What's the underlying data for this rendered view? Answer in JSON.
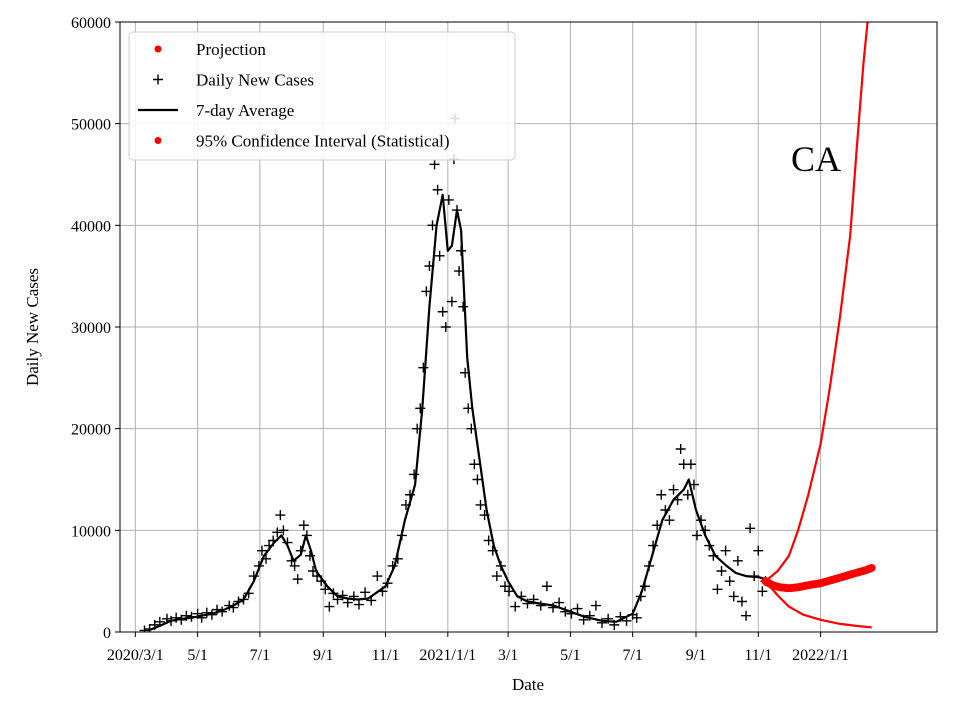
{
  "chart_data": {
    "type": "line",
    "region_label": "CA",
    "xlabel": "Date",
    "ylabel": "Daily New Cases",
    "xlim": [
      "2020-02-15",
      "2022-04-25"
    ],
    "ylim": [
      0,
      60000
    ],
    "grid": true,
    "legend_position": "top-left",
    "x_ticks": [
      {
        "date": "2020-03-01",
        "label": "2020/3/1"
      },
      {
        "date": "2020-05-01",
        "label": "5/1"
      },
      {
        "date": "2020-07-01",
        "label": "7/1"
      },
      {
        "date": "2020-09-01",
        "label": "9/1"
      },
      {
        "date": "2020-11-01",
        "label": "11/1"
      },
      {
        "date": "2021-01-01",
        "label": "2021/1/1"
      },
      {
        "date": "2021-03-01",
        "label": "3/1"
      },
      {
        "date": "2021-05-01",
        "label": "5/1"
      },
      {
        "date": "2021-07-01",
        "label": "7/1"
      },
      {
        "date": "2021-09-01",
        "label": "9/1"
      },
      {
        "date": "2021-11-01",
        "label": "11/1"
      },
      {
        "date": "2022-01-01",
        "label": "2022/1/1"
      }
    ],
    "y_ticks": [
      {
        "value": 0,
        "label": "0"
      },
      {
        "value": 10000,
        "label": "10000"
      },
      {
        "value": 20000,
        "label": "20000"
      },
      {
        "value": 30000,
        "label": "30000"
      },
      {
        "value": 40000,
        "label": "40000"
      },
      {
        "value": 50000,
        "label": "50000"
      },
      {
        "value": 60000,
        "label": "60000"
      }
    ],
    "legend": [
      {
        "key": "projection",
        "label": "Projection",
        "marker": "dot",
        "color": "#ff0000"
      },
      {
        "key": "daily",
        "label": "Daily New Cases",
        "marker": "plus",
        "color": "#000000"
      },
      {
        "key": "avg",
        "label": "7-day Average",
        "marker": "line",
        "color": "#000000"
      },
      {
        "key": "ci",
        "label": "95% Confidence Interval (Statistical)",
        "marker": "dot",
        "color": "#ff0000"
      }
    ],
    "series": [
      {
        "name": "7-day Average",
        "kind": "line",
        "color": "#000000",
        "points": [
          [
            "2020-03-15",
            200
          ],
          [
            "2020-03-25",
            600
          ],
          [
            "2020-04-05",
            1100
          ],
          [
            "2020-04-15",
            1300
          ],
          [
            "2020-04-25",
            1400
          ],
          [
            "2020-05-05",
            1600
          ],
          [
            "2020-05-15",
            1800
          ],
          [
            "2020-05-25",
            2100
          ],
          [
            "2020-06-05",
            2600
          ],
          [
            "2020-06-15",
            3200
          ],
          [
            "2020-06-25",
            5000
          ],
          [
            "2020-07-05",
            7500
          ],
          [
            "2020-07-15",
            8800
          ],
          [
            "2020-07-22",
            9500
          ],
          [
            "2020-07-28",
            8500
          ],
          [
            "2020-08-03",
            7000
          ],
          [
            "2020-08-10",
            7600
          ],
          [
            "2020-08-15",
            9500
          ],
          [
            "2020-08-20",
            8000
          ],
          [
            "2020-08-25",
            6000
          ],
          [
            "2020-09-05",
            4500
          ],
          [
            "2020-09-15",
            3500
          ],
          [
            "2020-09-25",
            3300
          ],
          [
            "2020-10-05",
            3200
          ],
          [
            "2020-10-15",
            3300
          ],
          [
            "2020-10-25",
            4000
          ],
          [
            "2020-11-01",
            4500
          ],
          [
            "2020-11-10",
            6500
          ],
          [
            "2020-11-20",
            11000
          ],
          [
            "2020-11-30",
            14500
          ],
          [
            "2020-12-07",
            22000
          ],
          [
            "2020-12-14",
            32000
          ],
          [
            "2020-12-21",
            40000
          ],
          [
            "2020-12-27",
            43000
          ],
          [
            "2021-01-01",
            37500
          ],
          [
            "2021-01-05",
            38000
          ],
          [
            "2021-01-10",
            41500
          ],
          [
            "2021-01-14",
            39500
          ],
          [
            "2021-01-20",
            27000
          ],
          [
            "2021-01-25",
            22000
          ],
          [
            "2021-02-01",
            17000
          ],
          [
            "2021-02-08",
            12000
          ],
          [
            "2021-02-15",
            8500
          ],
          [
            "2021-02-22",
            6500
          ],
          [
            "2021-03-01",
            5000
          ],
          [
            "2021-03-10",
            3500
          ],
          [
            "2021-03-20",
            3000
          ],
          [
            "2021-04-01",
            2800
          ],
          [
            "2021-04-15",
            2600
          ],
          [
            "2021-05-01",
            2000
          ],
          [
            "2021-05-15",
            1500
          ],
          [
            "2021-06-01",
            1100
          ],
          [
            "2021-06-15",
            1000
          ],
          [
            "2021-07-01",
            1800
          ],
          [
            "2021-07-10",
            4000
          ],
          [
            "2021-07-20",
            7500
          ],
          [
            "2021-07-30",
            11000
          ],
          [
            "2021-08-10",
            13000
          ],
          [
            "2021-08-20",
            14000
          ],
          [
            "2021-08-25",
            15000
          ],
          [
            "2021-09-01",
            12000
          ],
          [
            "2021-09-10",
            9500
          ],
          [
            "2021-09-20",
            7500
          ],
          [
            "2021-10-01",
            6500
          ],
          [
            "2021-10-10",
            5800
          ],
          [
            "2021-10-20",
            5500
          ],
          [
            "2021-11-01",
            5400
          ],
          [
            "2021-11-08",
            5200
          ]
        ]
      },
      {
        "name": "Projection",
        "kind": "dots",
        "color": "#ff0000",
        "points": [
          [
            "2021-11-08",
            5000
          ],
          [
            "2021-11-15",
            4600
          ],
          [
            "2021-11-22",
            4400
          ],
          [
            "2021-12-01",
            4300
          ],
          [
            "2021-12-10",
            4400
          ],
          [
            "2021-12-20",
            4600
          ],
          [
            "2022-01-01",
            4800
          ],
          [
            "2022-01-15",
            5200
          ],
          [
            "2022-02-01",
            5700
          ],
          [
            "2022-02-15",
            6100
          ],
          [
            "2022-02-20",
            6300
          ]
        ]
      },
      {
        "name": "95% Confidence Interval (Statistical) upper",
        "kind": "line",
        "color": "#ff0000",
        "points": [
          [
            "2021-11-08",
            5000
          ],
          [
            "2021-11-20",
            6000
          ],
          [
            "2021-12-01",
            7500
          ],
          [
            "2021-12-10",
            10000
          ],
          [
            "2021-12-20",
            13500
          ],
          [
            "2022-01-01",
            18500
          ],
          [
            "2022-01-10",
            24000
          ],
          [
            "2022-01-20",
            31000
          ],
          [
            "2022-01-30",
            39000
          ],
          [
            "2022-02-05",
            47000
          ],
          [
            "2022-02-12",
            56000
          ],
          [
            "2022-02-17",
            61000
          ]
        ]
      },
      {
        "name": "95% Confidence Interval (Statistical) lower",
        "kind": "line",
        "color": "#ff0000",
        "points": [
          [
            "2021-11-08",
            5000
          ],
          [
            "2021-11-20",
            3600
          ],
          [
            "2021-12-01",
            2500
          ],
          [
            "2021-12-15",
            1700
          ],
          [
            "2022-01-01",
            1200
          ],
          [
            "2022-01-20",
            800
          ],
          [
            "2022-02-05",
            600
          ],
          [
            "2022-02-20",
            450
          ]
        ]
      }
    ],
    "daily_cases": [
      [
        "2020-03-10",
        150
      ],
      [
        "2020-03-15",
        300
      ],
      [
        "2020-03-20",
        700
      ],
      [
        "2020-03-25",
        1000
      ],
      [
        "2020-04-01",
        1300
      ],
      [
        "2020-04-05",
        1100
      ],
      [
        "2020-04-10",
        1400
      ],
      [
        "2020-04-15",
        1200
      ],
      [
        "2020-04-20",
        1600
      ],
      [
        "2020-04-25",
        1500
      ],
      [
        "2020-05-01",
        1800
      ],
      [
        "2020-05-05",
        1400
      ],
      [
        "2020-05-10",
        1900
      ],
      [
        "2020-05-15",
        1700
      ],
      [
        "2020-05-20",
        2200
      ],
      [
        "2020-05-25",
        2000
      ],
      [
        "2020-06-01",
        2600
      ],
      [
        "2020-06-05",
        2400
      ],
      [
        "2020-06-10",
        3000
      ],
      [
        "2020-06-15",
        3200
      ],
      [
        "2020-06-20",
        3800
      ],
      [
        "2020-06-25",
        5500
      ],
      [
        "2020-06-30",
        6500
      ],
      [
        "2020-07-03",
        8000
      ],
      [
        "2020-07-07",
        7200
      ],
      [
        "2020-07-10",
        8500
      ],
      [
        "2020-07-14",
        9000
      ],
      [
        "2020-07-18",
        9800
      ],
      [
        "2020-07-21",
        11500
      ],
      [
        "2020-07-24",
        10000
      ],
      [
        "2020-07-28",
        8800
      ],
      [
        "2020-08-01",
        7000
      ],
      [
        "2020-08-04",
        6500
      ],
      [
        "2020-08-07",
        5200
      ],
      [
        "2020-08-10",
        8000
      ],
      [
        "2020-08-13",
        10500
      ],
      [
        "2020-08-16",
        9500
      ],
      [
        "2020-08-19",
        7500
      ],
      [
        "2020-08-22",
        6000
      ],
      [
        "2020-08-26",
        5500
      ],
      [
        "2020-08-30",
        5000
      ],
      [
        "2020-09-03",
        4200
      ],
      [
        "2020-09-07",
        2500
      ],
      [
        "2020-09-11",
        3800
      ],
      [
        "2020-09-15",
        3200
      ],
      [
        "2020-09-20",
        3600
      ],
      [
        "2020-09-25",
        2900
      ],
      [
        "2020-10-01",
        3500
      ],
      [
        "2020-10-06",
        2700
      ],
      [
        "2020-10-12",
        3900
      ],
      [
        "2020-10-18",
        3100
      ],
      [
        "2020-10-24",
        5500
      ],
      [
        "2020-10-29",
        4000
      ],
      [
        "2020-11-03",
        4800
      ],
      [
        "2020-11-08",
        6500
      ],
      [
        "2020-11-13",
        7200
      ],
      [
        "2020-11-17",
        9500
      ],
      [
        "2020-11-21",
        12500
      ],
      [
        "2020-11-25",
        13500
      ],
      [
        "2020-11-29",
        15500
      ],
      [
        "2020-12-02",
        20000
      ],
      [
        "2020-12-05",
        22000
      ],
      [
        "2020-12-08",
        26000
      ],
      [
        "2020-12-11",
        33500
      ],
      [
        "2020-12-14",
        36000
      ],
      [
        "2020-12-17",
        40000
      ],
      [
        "2020-12-19",
        46000
      ],
      [
        "2020-12-22",
        43500
      ],
      [
        "2020-12-24",
        37000
      ],
      [
        "2020-12-27",
        31500
      ],
      [
        "2020-12-30",
        30000
      ],
      [
        "2021-01-02",
        42500
      ],
      [
        "2021-01-05",
        32500
      ],
      [
        "2021-01-07",
        46500
      ],
      [
        "2021-01-08",
        50500
      ],
      [
        "2021-01-10",
        41500
      ],
      [
        "2021-01-12",
        35500
      ],
      [
        "2021-01-14",
        37500
      ],
      [
        "2021-01-16",
        32000
      ],
      [
        "2021-01-18",
        25500
      ],
      [
        "2021-01-21",
        22000
      ],
      [
        "2021-01-24",
        20000
      ],
      [
        "2021-01-27",
        16500
      ],
      [
        "2021-01-30",
        15000
      ],
      [
        "2021-02-02",
        12500
      ],
      [
        "2021-02-06",
        11500
      ],
      [
        "2021-02-10",
        9000
      ],
      [
        "2021-02-14",
        8000
      ],
      [
        "2021-02-18",
        5500
      ],
      [
        "2021-02-22",
        6500
      ],
      [
        "2021-02-26",
        4500
      ],
      [
        "2021-03-02",
        4000
      ],
      [
        "2021-03-08",
        2500
      ],
      [
        "2021-03-14",
        3500
      ],
      [
        "2021-03-20",
        2800
      ],
      [
        "2021-03-26",
        3200
      ],
      [
        "2021-04-02",
        2600
      ],
      [
        "2021-04-08",
        4500
      ],
      [
        "2021-04-14",
        2400
      ],
      [
        "2021-04-20",
        2900
      ],
      [
        "2021-04-26",
        2000
      ],
      [
        "2021-05-02",
        1800
      ],
      [
        "2021-05-08",
        2300
      ],
      [
        "2021-05-14",
        1200
      ],
      [
        "2021-05-20",
        1600
      ],
      [
        "2021-05-26",
        2600
      ],
      [
        "2021-06-01",
        900
      ],
      [
        "2021-06-07",
        1300
      ],
      [
        "2021-06-13",
        700
      ],
      [
        "2021-06-19",
        1500
      ],
      [
        "2021-06-25",
        1100
      ],
      [
        "2021-07-01",
        1700
      ],
      [
        "2021-07-05",
        1400
      ],
      [
        "2021-07-09",
        3500
      ],
      [
        "2021-07-13",
        4500
      ],
      [
        "2021-07-17",
        6500
      ],
      [
        "2021-07-21",
        8500
      ],
      [
        "2021-07-25",
        10500
      ],
      [
        "2021-07-29",
        13500
      ],
      [
        "2021-08-02",
        12000
      ],
      [
        "2021-08-06",
        11000
      ],
      [
        "2021-08-10",
        14000
      ],
      [
        "2021-08-14",
        13000
      ],
      [
        "2021-08-17",
        18000
      ],
      [
        "2021-08-20",
        16500
      ],
      [
        "2021-08-24",
        13500
      ],
      [
        "2021-08-27",
        16500
      ],
      [
        "2021-08-30",
        14500
      ],
      [
        "2021-09-02",
        9500
      ],
      [
        "2021-09-06",
        11000
      ],
      [
        "2021-09-10",
        10000
      ],
      [
        "2021-09-14",
        8500
      ],
      [
        "2021-09-18",
        7500
      ],
      [
        "2021-09-22",
        4200
      ],
      [
        "2021-09-26",
        6000
      ],
      [
        "2021-09-30",
        8000
      ],
      [
        "2021-10-04",
        5000
      ],
      [
        "2021-10-08",
        3500
      ],
      [
        "2021-10-12",
        7000
      ],
      [
        "2021-10-16",
        3000
      ],
      [
        "2021-10-20",
        1600
      ],
      [
        "2021-10-24",
        10200
      ],
      [
        "2021-10-28",
        5500
      ],
      [
        "2021-11-01",
        8000
      ],
      [
        "2021-11-05",
        4000
      ],
      [
        "2021-11-08",
        5000
      ]
    ]
  }
}
